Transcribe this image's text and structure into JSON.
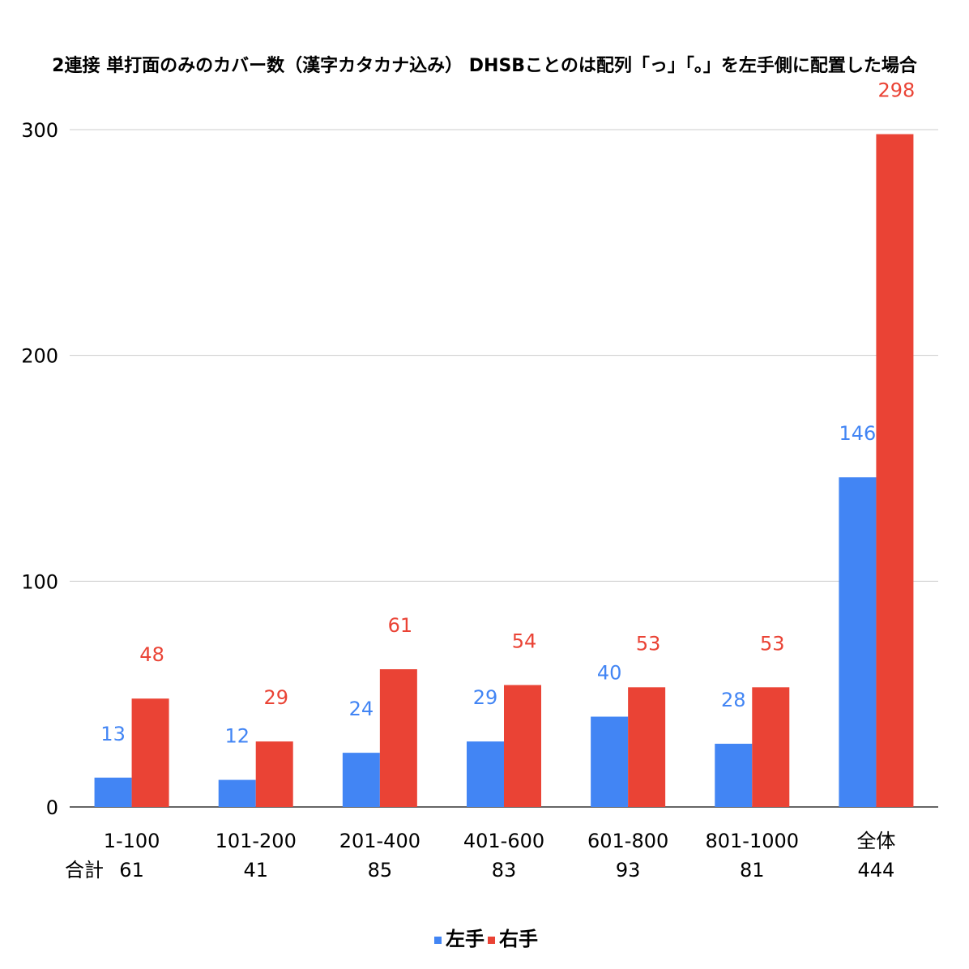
{
  "chart_data": {
    "type": "bar",
    "title": "2連接 単打面のみのカバー数（漢字カタカナ込み） DHSBことのは配列「っ」「。」を左手側に配置した場合",
    "xlabel": "",
    "ylabel": "",
    "categories": [
      "1-100",
      "101-200",
      "201-400",
      "401-600",
      "601-800",
      "801-1000",
      "全体"
    ],
    "series": [
      {
        "name": "左手",
        "color": "#4285f4",
        "values": [
          13,
          12,
          24,
          29,
          40,
          28,
          146
        ]
      },
      {
        "name": "右手",
        "color": "#ea4335",
        "values": [
          48,
          29,
          61,
          54,
          53,
          53,
          298
        ]
      }
    ],
    "totals_label": "合計",
    "totals": [
      "61",
      "41",
      "85",
      "83",
      "93",
      "81",
      "444"
    ],
    "ylim": [
      0,
      300
    ],
    "yticks": [
      0,
      100,
      200,
      300
    ],
    "grid": true,
    "legend_position": "bottom",
    "data_labels": true
  }
}
